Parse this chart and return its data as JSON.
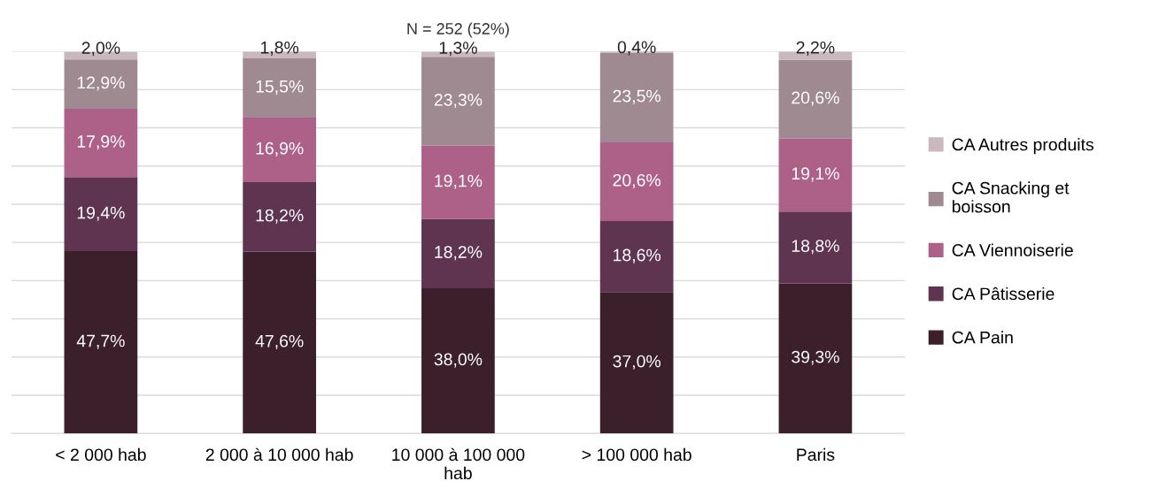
{
  "chart_data": {
    "type": "bar",
    "stacked": true,
    "title": "N = 252 (52%)",
    "categories": [
      "< 2 000 hab",
      "2 000 à 10 000 hab",
      "10 000 à 100 000\nhab",
      "> 100 000 hab",
      "Paris"
    ],
    "series": [
      {
        "name": "CA Pain",
        "color": "#3b1f2b",
        "values": [
          47.7,
          47.6,
          38.0,
          37.0,
          39.3
        ],
        "value_labels": [
          "47,7%",
          "47,6%",
          "38,0%",
          "37,0%",
          "39,3%"
        ]
      },
      {
        "name": "CA Pâtisserie",
        "color": "#5e3450",
        "values": [
          19.4,
          18.2,
          18.2,
          18.6,
          18.8
        ],
        "value_labels": [
          "19,4%",
          "18,2%",
          "18,2%",
          "18,6%",
          "18,8%"
        ]
      },
      {
        "name": "CA Viennoiserie",
        "color": "#ad6189",
        "values": [
          17.9,
          16.9,
          19.1,
          20.6,
          19.1
        ],
        "value_labels": [
          "17,9%",
          "16,9%",
          "19,1%",
          "20,6%",
          "19,1%"
        ]
      },
      {
        "name": "CA Snacking et\nboisson",
        "color": "#a08a91",
        "values": [
          12.9,
          15.5,
          23.3,
          23.5,
          20.6
        ],
        "value_labels": [
          "12,9%",
          "15,5%",
          "23,3%",
          "23,5%",
          "20,6%"
        ]
      },
      {
        "name": "CA Autres produits",
        "color": "#c9b8be",
        "values": [
          2.0,
          1.8,
          1.3,
          0.4,
          2.2
        ],
        "value_labels": [
          "2,0%",
          "1,8%",
          "1,3%",
          "0,4%",
          "2,2%"
        ]
      }
    ],
    "ylim": [
      0,
      100
    ],
    "yticks": [
      {
        "value": 0,
        "label": null
      },
      {
        "value": 10,
        "label": null
      },
      {
        "value": 20,
        "label": null
      },
      {
        "value": 30,
        "label": null
      },
      {
        "value": 40,
        "label": null
      },
      {
        "value": 50,
        "label": null
      },
      {
        "value": 60,
        "label": null
      },
      {
        "value": 70,
        "label": null
      },
      {
        "value": 80,
        "label": null
      },
      {
        "value": 90,
        "label": null
      },
      {
        "value": 100,
        "label": null
      }
    ],
    "grid": "y",
    "legend": "right",
    "tick_labels": "x"
  }
}
